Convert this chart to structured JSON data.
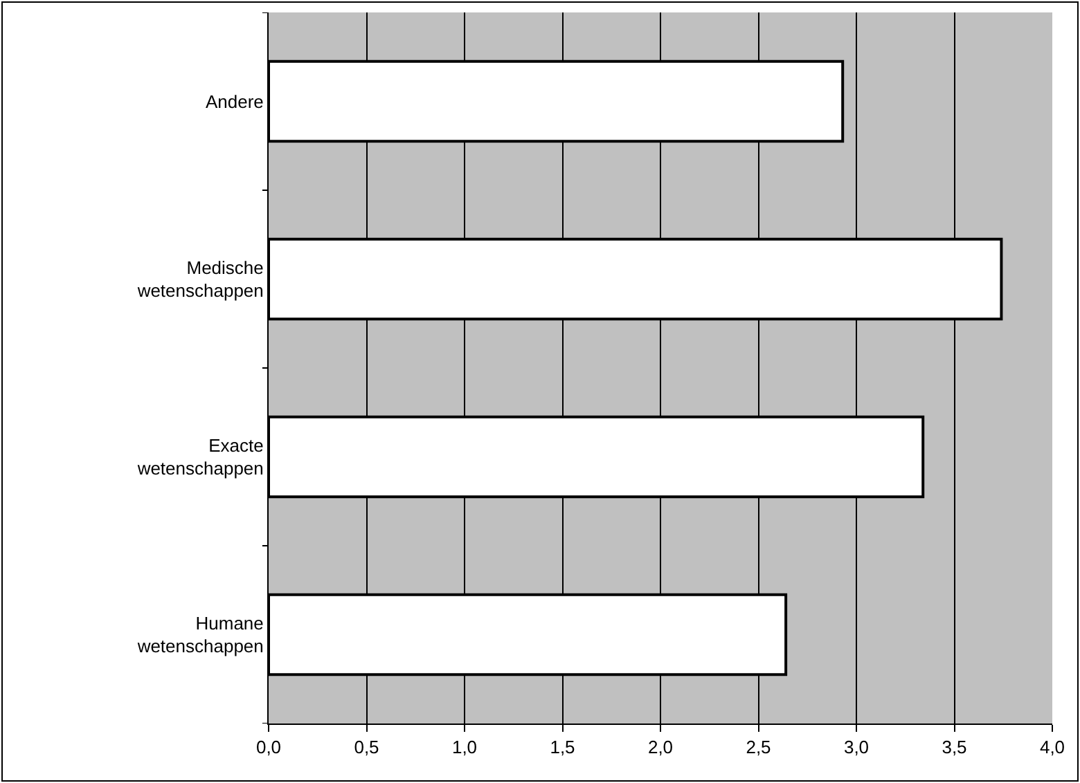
{
  "chart_data": {
    "type": "bar",
    "orientation": "horizontal",
    "categories": [
      "Andere",
      "Medische wetenschappen",
      "Exacte wetenschappen",
      "Humane wetenschappen"
    ],
    "values": [
      2.93,
      3.74,
      3.34,
      2.64
    ],
    "color": "#ffffff",
    "xlim": [
      0,
      4
    ],
    "xticks": [
      {
        "value": 0,
        "label": "0,0"
      },
      {
        "value": 0.5,
        "label": "0,5"
      },
      {
        "value": 1,
        "label": "1,0"
      },
      {
        "value": 1.5,
        "label": "1,5"
      },
      {
        "value": 2,
        "label": "2,0"
      },
      {
        "value": 2.5,
        "label": "2,5"
      },
      {
        "value": 3,
        "label": "3,0"
      },
      {
        "value": 3.5,
        "label": "3,5"
      },
      {
        "value": 4,
        "label": "4,0"
      }
    ],
    "grid": "x",
    "legend": false
  }
}
